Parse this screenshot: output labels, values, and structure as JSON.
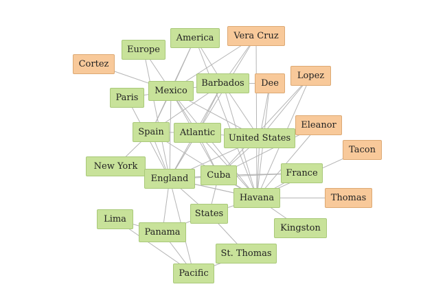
{
  "colors": {
    "place_fill": "#c8e29a",
    "place_border": "#a8c878",
    "person_fill": "#f8c99a",
    "person_border": "#dca872",
    "edge": "#b4b4b4"
  },
  "nodes": [
    {
      "id": "america",
      "label": "America",
      "kind": "place"
    },
    {
      "id": "vera-cruz",
      "label": "Vera Cruz",
      "kind": "person"
    },
    {
      "id": "europe",
      "label": "Europe",
      "kind": "place"
    },
    {
      "id": "cortez",
      "label": "Cortez",
      "kind": "person"
    },
    {
      "id": "lopez",
      "label": "Lopez",
      "kind": "person"
    },
    {
      "id": "barbados",
      "label": "Barbados",
      "kind": "place"
    },
    {
      "id": "dee",
      "label": "Dee",
      "kind": "person"
    },
    {
      "id": "mexico",
      "label": "Mexico",
      "kind": "place"
    },
    {
      "id": "paris",
      "label": "Paris",
      "kind": "place"
    },
    {
      "id": "eleanor",
      "label": "Eleanor",
      "kind": "person"
    },
    {
      "id": "spain",
      "label": "Spain",
      "kind": "place"
    },
    {
      "id": "atlantic",
      "label": "Atlantic",
      "kind": "place"
    },
    {
      "id": "united-states",
      "label": "United States",
      "kind": "place"
    },
    {
      "id": "tacon",
      "label": "Tacon",
      "kind": "person"
    },
    {
      "id": "new-york",
      "label": "New York",
      "kind": "place"
    },
    {
      "id": "england",
      "label": "England",
      "kind": "place"
    },
    {
      "id": "cuba",
      "label": "Cuba",
      "kind": "place"
    },
    {
      "id": "france",
      "label": "France",
      "kind": "place"
    },
    {
      "id": "havana",
      "label": "Havana",
      "kind": "place"
    },
    {
      "id": "thomas",
      "label": "Thomas",
      "kind": "person"
    },
    {
      "id": "states",
      "label": "States",
      "kind": "place"
    },
    {
      "id": "lima",
      "label": "Lima",
      "kind": "place"
    },
    {
      "id": "kingston",
      "label": "Kingston",
      "kind": "place"
    },
    {
      "id": "panama",
      "label": "Panama",
      "kind": "place"
    },
    {
      "id": "st-thomas",
      "label": "St. Thomas",
      "kind": "place"
    },
    {
      "id": "pacific",
      "label": "Pacific",
      "kind": "place"
    }
  ],
  "edges": [
    [
      "america",
      "mexico"
    ],
    [
      "america",
      "barbados"
    ],
    [
      "america",
      "spain"
    ],
    [
      "america",
      "havana"
    ],
    [
      "vera-cruz",
      "mexico"
    ],
    [
      "vera-cruz",
      "havana"
    ],
    [
      "vera-cruz",
      "barbados"
    ],
    [
      "vera-cruz",
      "england"
    ],
    [
      "europe",
      "mexico"
    ],
    [
      "europe",
      "england"
    ],
    [
      "cortez",
      "mexico"
    ],
    [
      "lopez",
      "havana"
    ],
    [
      "lopez",
      "cuba"
    ],
    [
      "lopez",
      "united-states"
    ],
    [
      "barbados",
      "mexico"
    ],
    [
      "barbados",
      "dee"
    ],
    [
      "barbados",
      "england"
    ],
    [
      "barbados",
      "havana"
    ],
    [
      "barbados",
      "united-states"
    ],
    [
      "barbados",
      "spain"
    ],
    [
      "barbados",
      "atlantic"
    ],
    [
      "dee",
      "havana"
    ],
    [
      "dee",
      "united-states"
    ],
    [
      "mexico",
      "spain"
    ],
    [
      "mexico",
      "england"
    ],
    [
      "mexico",
      "havana"
    ],
    [
      "mexico",
      "atlantic"
    ],
    [
      "mexico",
      "united-states"
    ],
    [
      "mexico",
      "paris"
    ],
    [
      "mexico",
      "cuba"
    ],
    [
      "paris",
      "england"
    ],
    [
      "eleanor",
      "united-states"
    ],
    [
      "eleanor",
      "havana"
    ],
    [
      "eleanor",
      "cuba"
    ],
    [
      "spain",
      "england"
    ],
    [
      "spain",
      "havana"
    ],
    [
      "spain",
      "atlantic"
    ],
    [
      "spain",
      "new-york"
    ],
    [
      "atlantic",
      "england"
    ],
    [
      "atlantic",
      "havana"
    ],
    [
      "atlantic",
      "united-states"
    ],
    [
      "atlantic",
      "cuba"
    ],
    [
      "united-states",
      "havana"
    ],
    [
      "united-states",
      "england"
    ],
    [
      "united-states",
      "cuba"
    ],
    [
      "tacon",
      "havana"
    ],
    [
      "new-york",
      "england"
    ],
    [
      "new-york",
      "havana"
    ],
    [
      "england",
      "havana"
    ],
    [
      "england",
      "cuba"
    ],
    [
      "england",
      "states"
    ],
    [
      "england",
      "panama"
    ],
    [
      "england",
      "pacific"
    ],
    [
      "england",
      "france"
    ],
    [
      "cuba",
      "havana"
    ],
    [
      "cuba",
      "states"
    ],
    [
      "cuba",
      "france"
    ],
    [
      "france",
      "havana"
    ],
    [
      "havana",
      "thomas"
    ],
    [
      "havana",
      "kingston"
    ],
    [
      "havana",
      "states"
    ],
    [
      "states",
      "panama"
    ],
    [
      "states",
      "st-thomas"
    ],
    [
      "lima",
      "panama"
    ],
    [
      "lima",
      "pacific"
    ],
    [
      "panama",
      "pacific"
    ],
    [
      "st-thomas",
      "pacific"
    ]
  ]
}
